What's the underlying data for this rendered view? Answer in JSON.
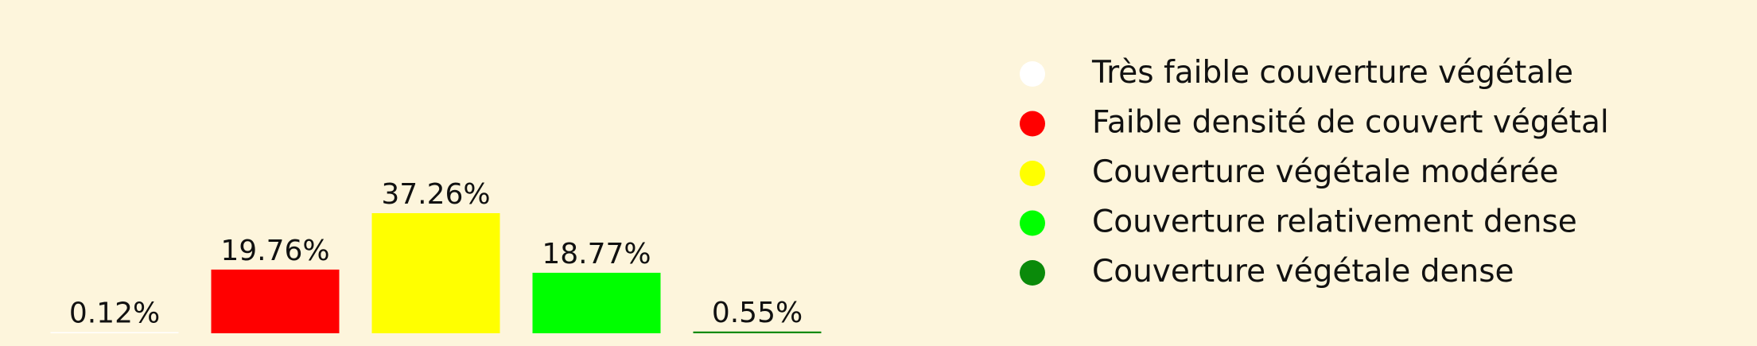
{
  "chart_data": {
    "type": "bar",
    "title": "",
    "xlabel": "",
    "ylabel": "",
    "categories": [
      "Très faible couverture végétale",
      "Faible densité de couvert végétal",
      "Couverture végétale modérée",
      "Couverture relativement dense",
      "Couverture végétale dense"
    ],
    "values": [
      0.12,
      19.76,
      37.26,
      18.77,
      0.55
    ],
    "data_labels": [
      "0.12%",
      "19.76%",
      "37.26%",
      "18.77%",
      "0.55%"
    ],
    "colors": [
      "#ffffff",
      "#ff0000",
      "#ffff00",
      "#00ff00",
      "#0a8a0a"
    ],
    "background_color": "#fdf5dc",
    "ylim": [
      0,
      37.26
    ],
    "grid": false,
    "axes_visible": false,
    "legend": {
      "position": "right",
      "marker": "circle"
    }
  }
}
